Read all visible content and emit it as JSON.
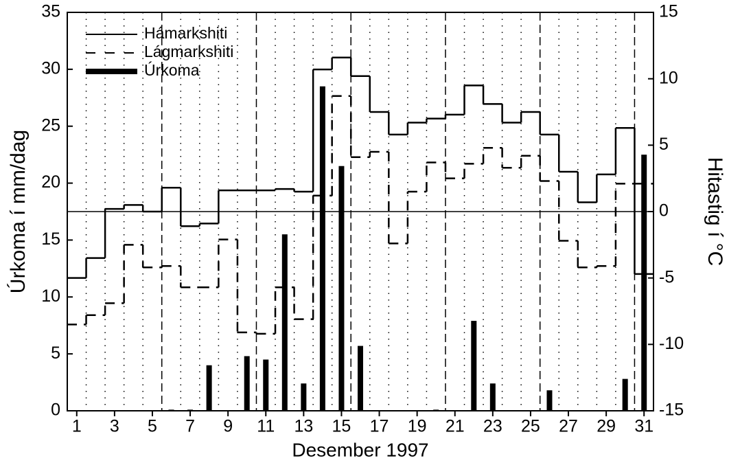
{
  "chart_data": {
    "type": "combo",
    "x_label": "Desember 1997",
    "y_label": "Úrkoma í mm/dag",
    "y2_label": "Hitastig í °C",
    "x": [
      1,
      2,
      3,
      4,
      5,
      6,
      7,
      8,
      9,
      10,
      11,
      12,
      13,
      14,
      15,
      16,
      17,
      18,
      19,
      20,
      21,
      22,
      23,
      24,
      25,
      26,
      27,
      28,
      29,
      30,
      31
    ],
    "xlim": [
      0.5,
      31.5
    ],
    "xticks": [
      1,
      3,
      5,
      7,
      9,
      11,
      13,
      15,
      17,
      19,
      21,
      23,
      25,
      27,
      29,
      31
    ],
    "ylim": [
      0,
      35
    ],
    "yticks": [
      0,
      5,
      10,
      15,
      20,
      25,
      30,
      35
    ],
    "y2lim": [
      -15,
      15
    ],
    "y2ticks": [
      -15,
      -10,
      -5,
      0,
      5,
      10,
      15
    ],
    "grid": true,
    "legend": "upper left",
    "series": [
      {
        "name": "Hámarkshiti",
        "axis": "y2",
        "style": "step",
        "dash": "solid",
        "color": "#000000",
        "values": [
          -5.0,
          -3.5,
          0.2,
          0.5,
          0.0,
          1.8,
          -1.1,
          -0.9,
          1.6,
          1.6,
          1.6,
          1.7,
          1.5,
          10.7,
          11.6,
          10.2,
          7.5,
          5.8,
          6.7,
          7.0,
          7.3,
          9.5,
          8.1,
          6.7,
          7.5,
          5.8,
          3.0,
          0.7,
          2.8,
          6.3,
          -4.7
        ]
      },
      {
        "name": "Lágmarkshiti",
        "axis": "y2",
        "style": "step",
        "dash": "dashed",
        "color": "#000000",
        "values": [
          -8.5,
          -7.8,
          -6.9,
          -2.5,
          -4.2,
          -4.1,
          -5.7,
          -5.7,
          -2.1,
          -9.1,
          -9.2,
          -5.7,
          -8.1,
          1.2,
          8.7,
          4.1,
          4.5,
          -2.4,
          1.5,
          3.7,
          2.5,
          3.6,
          4.8,
          3.3,
          4.2,
          2.3,
          -2.2,
          -4.2,
          -4.1,
          2.1,
          2.1
        ]
      },
      {
        "name": "Úrkoma",
        "axis": "y",
        "style": "bar",
        "color": "#000000",
        "values": [
          0,
          0,
          0,
          0,
          0,
          0.1,
          0.1,
          4.0,
          0,
          4.8,
          4.5,
          15.5,
          2.4,
          28.5,
          21.5,
          5.7,
          0,
          0,
          0,
          0.1,
          0,
          7.9,
          2.4,
          0,
          0,
          1.8,
          0,
          0,
          0,
          2.8,
          22.5
        ]
      }
    ]
  }
}
